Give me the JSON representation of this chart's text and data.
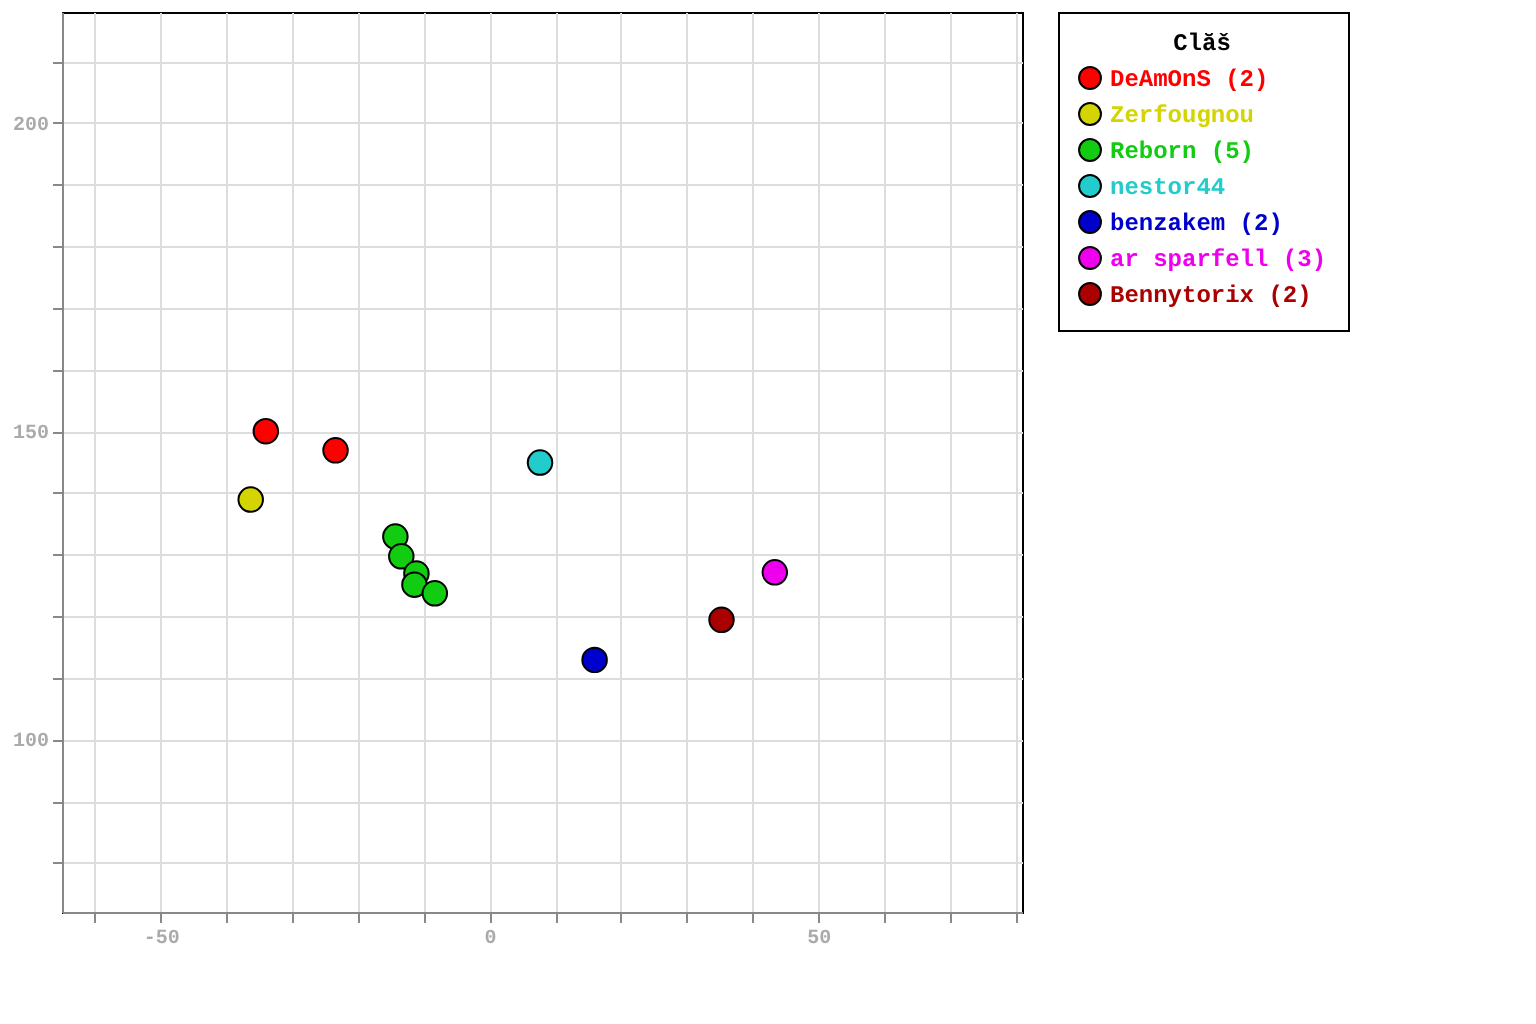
{
  "chart_data": {
    "type": "scatter",
    "legend_title": "Clăš",
    "legend": "right",
    "grid": true,
    "marker": "circle",
    "xlim": [
      -65,
      81
    ],
    "ylim": [
      72,
      218
    ],
    "xticks": [
      {
        "value": -60,
        "label": null
      },
      -50,
      {
        "value": -40,
        "label": null
      },
      {
        "value": -30,
        "label": null
      },
      {
        "value": -20,
        "label": null
      },
      {
        "value": -10,
        "label": null
      },
      0,
      {
        "value": 10,
        "label": null
      },
      {
        "value": 20,
        "label": null
      },
      {
        "value": 30,
        "label": null
      },
      {
        "value": 40,
        "label": null
      },
      50,
      {
        "value": 60,
        "label": null
      },
      {
        "value": 70,
        "label": null
      },
      {
        "value": 80,
        "label": null
      }
    ],
    "yticks": [
      {
        "value": 80,
        "label": null
      },
      {
        "value": 90,
        "label": null
      },
      100,
      {
        "value": 110,
        "label": null
      },
      {
        "value": 120,
        "label": null
      },
      {
        "value": 130,
        "label": null
      },
      {
        "value": 140,
        "label": null
      },
      150,
      {
        "value": 160,
        "label": null
      },
      {
        "value": 170,
        "label": null
      },
      {
        "value": 180,
        "label": null
      },
      {
        "value": 190,
        "label": null
      },
      200,
      {
        "value": 210,
        "label": null
      }
    ],
    "series": [
      {
        "name": "DeAmOnS (2)",
        "color": "#ff0000",
        "x": [
          -34,
          -23.4
        ],
        "values": [
          150,
          146.9
        ]
      },
      {
        "name": "Zerfougnou",
        "color": "#d4d400",
        "x": [
          -36.3
        ],
        "values": [
          138.9
        ]
      },
      {
        "name": "Reborn (5)",
        "color": "#11cc11",
        "x": [
          -14.3,
          -13.4,
          -11.1,
          -11.4,
          -8.3
        ],
        "values": [
          132.9,
          129.7,
          126.9,
          125.1,
          123.7
        ]
      },
      {
        "name": "nestor44",
        "color": "#22cccc",
        "x": [
          7.7
        ],
        "values": [
          144.9
        ]
      },
      {
        "name": "benzakem (2)",
        "color": "#0000cc",
        "x": [
          16,
          null
        ],
        "values": [
          112.9,
          null
        ]
      },
      {
        "name": "ar sparfell (3)",
        "color": "#ee00ee",
        "x": [
          null,
          43.4,
          null
        ],
        "values": [
          null,
          127.1,
          null
        ]
      },
      {
        "name": "Bennytorix (2)",
        "color": "#aa0000",
        "x": [
          null,
          35.3
        ],
        "values": [
          null,
          119.4
        ]
      }
    ]
  }
}
